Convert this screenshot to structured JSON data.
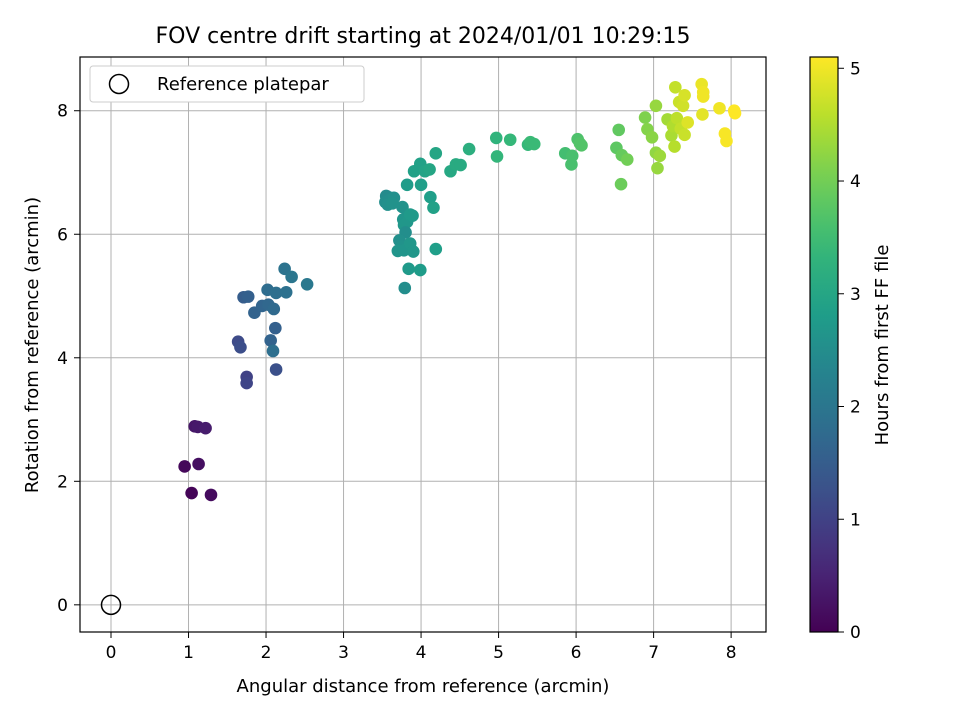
{
  "chart_data": {
    "type": "scatter",
    "title": "FOV centre drift starting at 2024/01/01 10:29:15",
    "xlabel": "Angular distance from reference (arcmin)",
    "ylabel": "Rotation from reference (arcmin)",
    "xlim": [
      -0.4,
      8.45
    ],
    "ylim": [
      -0.44,
      8.87
    ],
    "xticks": [
      0,
      1,
      2,
      3,
      4,
      5,
      6,
      7,
      8
    ],
    "yticks": [
      0,
      2,
      4,
      6,
      8
    ],
    "grid": true,
    "legend": {
      "placement": "top-left",
      "entries": [
        "Reference platepar"
      ]
    },
    "reference_point": {
      "name": "Reference platepar",
      "x": 0,
      "y": 0,
      "marker": "hollow-circle"
    },
    "colorbar": {
      "label": "Hours from first FF file",
      "colormap": "viridis",
      "range": [
        0,
        5.1
      ],
      "ticks": [
        0,
        1,
        2,
        3,
        4,
        5
      ]
    },
    "series": [
      {
        "points": [
          {
            "x": 1.08,
            "y": 2.89,
            "c": 0.3
          },
          {
            "x": 1.12,
            "y": 2.88,
            "c": 0.35
          },
          {
            "x": 1.22,
            "y": 2.86,
            "c": 0.4
          },
          {
            "x": 0.95,
            "y": 2.24,
            "c": 0.1
          },
          {
            "x": 1.13,
            "y": 2.28,
            "c": 0.2
          },
          {
            "x": 1.04,
            "y": 1.81,
            "c": 0.05
          },
          {
            "x": 1.29,
            "y": 1.78,
            "c": 0.15
          },
          {
            "x": 1.64,
            "y": 4.26,
            "c": 1.15
          },
          {
            "x": 1.67,
            "y": 4.17,
            "c": 1.2
          },
          {
            "x": 1.75,
            "y": 3.69,
            "c": 1.0
          },
          {
            "x": 1.75,
            "y": 3.59,
            "c": 1.05
          },
          {
            "x": 2.13,
            "y": 3.81,
            "c": 1.25
          },
          {
            "x": 2.06,
            "y": 4.28,
            "c": 1.6
          },
          {
            "x": 2.12,
            "y": 4.48,
            "c": 1.55
          },
          {
            "x": 2.09,
            "y": 4.11,
            "c": 1.85
          },
          {
            "x": 1.71,
            "y": 4.98,
            "c": 1.5
          },
          {
            "x": 1.77,
            "y": 4.99,
            "c": 1.55
          },
          {
            "x": 1.85,
            "y": 4.73,
            "c": 1.6
          },
          {
            "x": 1.95,
            "y": 4.84,
            "c": 1.65
          },
          {
            "x": 2.03,
            "y": 4.86,
            "c": 1.7
          },
          {
            "x": 2.1,
            "y": 4.79,
            "c": 1.75
          },
          {
            "x": 2.02,
            "y": 5.1,
            "c": 1.8
          },
          {
            "x": 2.13,
            "y": 5.05,
            "c": 1.85
          },
          {
            "x": 2.24,
            "y": 5.44,
            "c": 1.95
          },
          {
            "x": 2.26,
            "y": 5.06,
            "c": 1.9
          },
          {
            "x": 2.33,
            "y": 5.31,
            "c": 2.0
          },
          {
            "x": 2.53,
            "y": 5.19,
            "c": 2.05
          },
          {
            "x": 3.55,
            "y": 6.62,
            "c": 2.45
          },
          {
            "x": 3.58,
            "y": 6.6,
            "c": 2.45
          },
          {
            "x": 3.54,
            "y": 6.52,
            "c": 2.5
          },
          {
            "x": 3.6,
            "y": 6.56,
            "c": 2.5
          },
          {
            "x": 3.65,
            "y": 6.59,
            "c": 2.55
          },
          {
            "x": 3.57,
            "y": 6.48,
            "c": 2.55
          },
          {
            "x": 3.63,
            "y": 6.5,
            "c": 2.6
          },
          {
            "x": 3.76,
            "y": 6.44,
            "c": 2.6
          },
          {
            "x": 3.8,
            "y": 6.26,
            "c": 2.65
          },
          {
            "x": 3.77,
            "y": 6.24,
            "c": 2.65
          },
          {
            "x": 3.82,
            "y": 6.2,
            "c": 2.7
          },
          {
            "x": 3.78,
            "y": 6.15,
            "c": 2.7
          },
          {
            "x": 3.86,
            "y": 6.32,
            "c": 2.75
          },
          {
            "x": 3.89,
            "y": 6.3,
            "c": 2.75
          },
          {
            "x": 3.8,
            "y": 6.03,
            "c": 2.5
          },
          {
            "x": 3.72,
            "y": 5.9,
            "c": 2.55
          },
          {
            "x": 3.75,
            "y": 5.8,
            "c": 2.6
          },
          {
            "x": 3.7,
            "y": 5.73,
            "c": 2.65
          },
          {
            "x": 3.78,
            "y": 5.74,
            "c": 2.65
          },
          {
            "x": 3.86,
            "y": 5.85,
            "c": 2.7
          },
          {
            "x": 3.9,
            "y": 5.72,
            "c": 2.7
          },
          {
            "x": 3.84,
            "y": 5.44,
            "c": 2.75
          },
          {
            "x": 3.99,
            "y": 5.42,
            "c": 2.8
          },
          {
            "x": 3.79,
            "y": 5.13,
            "c": 2.5
          },
          {
            "x": 4.19,
            "y": 5.76,
            "c": 2.85
          },
          {
            "x": 3.82,
            "y": 6.8,
            "c": 2.8
          },
          {
            "x": 4.0,
            "y": 6.8,
            "c": 2.85
          },
          {
            "x": 3.91,
            "y": 7.02,
            "c": 2.9
          },
          {
            "x": 3.99,
            "y": 7.14,
            "c": 2.9
          },
          {
            "x": 4.05,
            "y": 7.02,
            "c": 2.95
          },
          {
            "x": 4.11,
            "y": 7.05,
            "c": 3.0
          },
          {
            "x": 4.12,
            "y": 6.6,
            "c": 2.85
          },
          {
            "x": 4.16,
            "y": 6.43,
            "c": 2.9
          },
          {
            "x": 4.19,
            "y": 7.31,
            "c": 3.0
          },
          {
            "x": 4.38,
            "y": 7.02,
            "c": 3.05
          },
          {
            "x": 4.45,
            "y": 7.13,
            "c": 3.1
          },
          {
            "x": 4.51,
            "y": 7.12,
            "c": 3.1
          },
          {
            "x": 4.62,
            "y": 7.38,
            "c": 3.2
          },
          {
            "x": 4.97,
            "y": 7.56,
            "c": 3.3
          },
          {
            "x": 4.98,
            "y": 7.26,
            "c": 3.35
          },
          {
            "x": 5.15,
            "y": 7.53,
            "c": 3.4
          },
          {
            "x": 5.38,
            "y": 7.45,
            "c": 3.4
          },
          {
            "x": 5.41,
            "y": 7.49,
            "c": 3.45
          },
          {
            "x": 5.46,
            "y": 7.46,
            "c": 3.45
          },
          {
            "x": 5.86,
            "y": 7.31,
            "c": 3.55
          },
          {
            "x": 5.94,
            "y": 7.13,
            "c": 3.6
          },
          {
            "x": 5.95,
            "y": 7.27,
            "c": 3.6
          },
          {
            "x": 6.02,
            "y": 7.54,
            "c": 3.65
          },
          {
            "x": 6.05,
            "y": 7.47,
            "c": 3.7
          },
          {
            "x": 6.07,
            "y": 7.44,
            "c": 3.7
          },
          {
            "x": 6.52,
            "y": 7.4,
            "c": 3.8
          },
          {
            "x": 6.55,
            "y": 7.69,
            "c": 3.85
          },
          {
            "x": 6.59,
            "y": 7.28,
            "c": 3.9
          },
          {
            "x": 6.58,
            "y": 6.81,
            "c": 3.95
          },
          {
            "x": 6.66,
            "y": 7.21,
            "c": 4.0
          },
          {
            "x": 6.89,
            "y": 7.89,
            "c": 4.1
          },
          {
            "x": 6.92,
            "y": 7.7,
            "c": 4.15
          },
          {
            "x": 6.98,
            "y": 7.57,
            "c": 4.2
          },
          {
            "x": 7.03,
            "y": 8.08,
            "c": 4.3
          },
          {
            "x": 7.03,
            "y": 7.32,
            "c": 4.25
          },
          {
            "x": 7.05,
            "y": 7.07,
            "c": 4.3
          },
          {
            "x": 7.08,
            "y": 7.27,
            "c": 4.35
          },
          {
            "x": 7.18,
            "y": 7.86,
            "c": 4.4
          },
          {
            "x": 7.23,
            "y": 7.6,
            "c": 4.45
          },
          {
            "x": 7.25,
            "y": 7.75,
            "c": 4.5
          },
          {
            "x": 7.27,
            "y": 7.42,
            "c": 4.55
          },
          {
            "x": 7.28,
            "y": 8.38,
            "c": 4.65
          },
          {
            "x": 7.3,
            "y": 7.88,
            "c": 4.6
          },
          {
            "x": 7.33,
            "y": 8.14,
            "c": 4.7
          },
          {
            "x": 7.35,
            "y": 7.71,
            "c": 4.65
          },
          {
            "x": 7.38,
            "y": 8.08,
            "c": 4.75
          },
          {
            "x": 7.4,
            "y": 7.61,
            "c": 4.7
          },
          {
            "x": 7.4,
            "y": 8.25,
            "c": 4.8
          },
          {
            "x": 7.44,
            "y": 7.81,
            "c": 4.85
          },
          {
            "x": 7.62,
            "y": 8.43,
            "c": 4.95
          },
          {
            "x": 7.63,
            "y": 7.94,
            "c": 4.9
          },
          {
            "x": 7.64,
            "y": 8.3,
            "c": 5.0
          },
          {
            "x": 7.64,
            "y": 8.23,
            "c": 5.0
          },
          {
            "x": 7.85,
            "y": 8.04,
            "c": 5.0
          },
          {
            "x": 7.92,
            "y": 7.63,
            "c": 5.05
          },
          {
            "x": 7.94,
            "y": 7.51,
            "c": 5.05
          },
          {
            "x": 8.04,
            "y": 8.0,
            "c": 5.1
          },
          {
            "x": 8.05,
            "y": 7.96,
            "c": 5.1
          }
        ]
      }
    ]
  }
}
